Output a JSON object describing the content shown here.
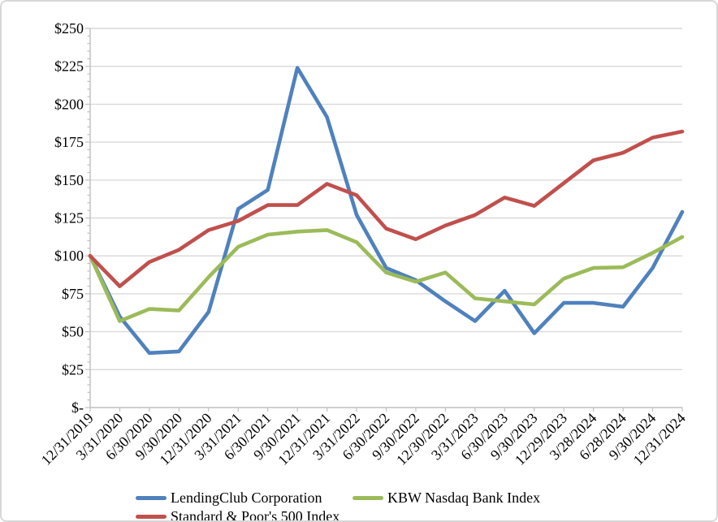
{
  "chart_data": {
    "type": "line",
    "title": "",
    "categories": [
      "12/31/2019",
      "3/31/2020",
      "6/30/2020",
      "9/30/2020",
      "12/31/2020",
      "3/31/2021",
      "6/30/2021",
      "9/30/2021",
      "12/31/2021",
      "3/31/2022",
      "6/30/2022",
      "9/30/2022",
      "12/30/2022",
      "3/31/2023",
      "6/30/2023",
      "9/30/2023",
      "12/29/2023",
      "3/28/2024",
      "6/28/2024",
      "9/30/2024",
      "12/31/2024"
    ],
    "series": [
      {
        "name": "LendingClub Corporation",
        "color": "#4F81BD",
        "values": [
          100,
          60,
          36,
          37,
          63,
          131,
          143.5,
          224,
          191.5,
          127,
          92,
          84,
          70,
          57,
          77,
          49,
          69,
          69,
          66.5,
          92,
          129
        ]
      },
      {
        "name": "KBW Nasdaq Bank Index",
        "color": "#9BBB59",
        "values": [
          100,
          57,
          65,
          64,
          86,
          106,
          114,
          116,
          117,
          109,
          89,
          83,
          89,
          72,
          70,
          68,
          85,
          92,
          92.5,
          102,
          112.5
        ]
      },
      {
        "name": "Standard & Poor's 500 Index",
        "color": "#C0504D",
        "values": [
          100,
          80,
          96,
          104,
          117,
          123,
          133.5,
          133.5,
          147.5,
          140,
          118,
          111,
          120,
          127,
          138.5,
          133,
          148,
          163,
          168,
          178,
          182
        ]
      }
    ],
    "y_axis": {
      "min": 0,
      "max": 250,
      "step": 25,
      "minor_step": 5,
      "tick_labels": [
        "$250",
        "$225",
        "$200",
        "$175",
        "$150",
        "$125",
        "$100",
        "$75",
        "$50",
        "$25",
        "$-"
      ]
    },
    "x_axis": {
      "label_rotation_deg": -45
    },
    "ylim": [
      0,
      250
    ],
    "grid": true,
    "legend_position": "bottom"
  },
  "colors": {
    "background": "#FFFFFF",
    "gridline": "#D9D9D9",
    "axis": "#BFBFBF",
    "text": "#000000",
    "frame_border": "#D7D7D7"
  }
}
